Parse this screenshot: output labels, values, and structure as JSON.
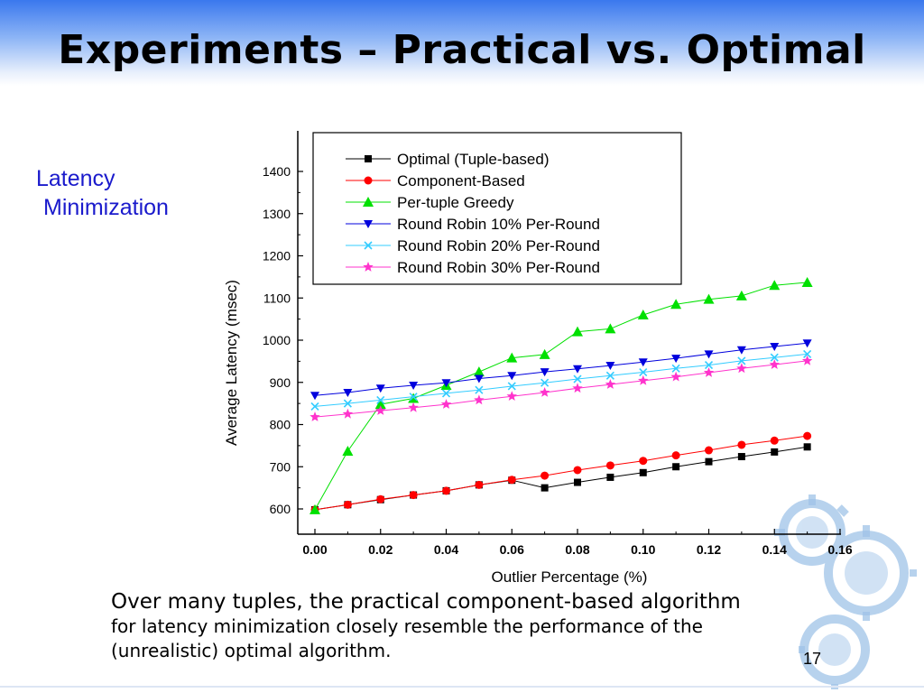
{
  "slide": {
    "title": "Experiments – Practical vs. Optimal",
    "side_label_line1": "Latency",
    "side_label_line2": "Minimization",
    "caption_line1": "Over many tuples, the practical component-based algorithm",
    "caption_line2": "for latency minimization closely resemble the performance of the",
    "caption_line3": "(unrealistic) optimal algorithm.",
    "page_number": "17"
  },
  "chart_data": {
    "type": "line",
    "xlabel": "Outlier Percentage (%)",
    "ylabel": "Average Latency (msec)",
    "xlim": [
      0,
      0.16
    ],
    "ylim": [
      550,
      1420
    ],
    "xticks": [
      0.0,
      0.02,
      0.04,
      0.06,
      0.08,
      0.1,
      0.12,
      0.14,
      0.16
    ],
    "xtick_labels": [
      "0.00",
      "0.02",
      "0.04",
      "0.06",
      "0.08",
      "0.10",
      "0.12",
      "0.14",
      "0.16"
    ],
    "yticks": [
      600,
      700,
      800,
      900,
      1000,
      1100,
      1200,
      1300,
      1400
    ],
    "ytick_labels": [
      "600",
      "700",
      "800",
      "900",
      "1000",
      "1100",
      "1200",
      "1300",
      "1400"
    ],
    "legend_position": "top",
    "x": [
      0.0,
      0.01,
      0.02,
      0.03,
      0.04,
      0.05,
      0.06,
      0.07,
      0.08,
      0.09,
      0.1,
      0.11,
      0.12,
      0.13,
      0.14,
      0.15
    ],
    "series": [
      {
        "name": "Optimal (Tuple-based)",
        "color": "#000000",
        "marker": "square",
        "values": [
          598,
          610,
          622,
          633,
          643,
          657,
          668,
          650,
          663,
          675,
          686,
          700,
          712,
          724,
          735,
          747
        ]
      },
      {
        "name": "Component-Based",
        "color": "#ff0000",
        "marker": "circle",
        "values": [
          598,
          610,
          623,
          633,
          643,
          657,
          669,
          679,
          692,
          703,
          714,
          727,
          739,
          752,
          762,
          773
        ]
      },
      {
        "name": "Per-tuple Greedy",
        "color": "#00e000",
        "marker": "triangle-up",
        "values": [
          598,
          737,
          848,
          862,
          893,
          925,
          958,
          966,
          1020,
          1027,
          1060,
          1085,
          1097,
          1105,
          1130,
          1137
        ]
      },
      {
        "name": "Round Robin 10% Per-Round",
        "color": "#0000dd",
        "marker": "triangle-down",
        "values": [
          869,
          876,
          886,
          893,
          899,
          909,
          916,
          925,
          932,
          940,
          948,
          957,
          967,
          977,
          985,
          993
        ]
      },
      {
        "name": "Round Robin 20% Per-Round",
        "color": "#33ccff",
        "marker": "x",
        "values": [
          843,
          850,
          858,
          866,
          874,
          882,
          891,
          899,
          908,
          916,
          924,
          933,
          941,
          951,
          959,
          967
        ]
      },
      {
        "name": "Round Robin 30% Per-Round",
        "color": "#ff33cc",
        "marker": "star",
        "values": [
          818,
          825,
          833,
          840,
          848,
          858,
          867,
          876,
          886,
          895,
          904,
          913,
          923,
          933,
          942,
          951
        ]
      }
    ]
  }
}
